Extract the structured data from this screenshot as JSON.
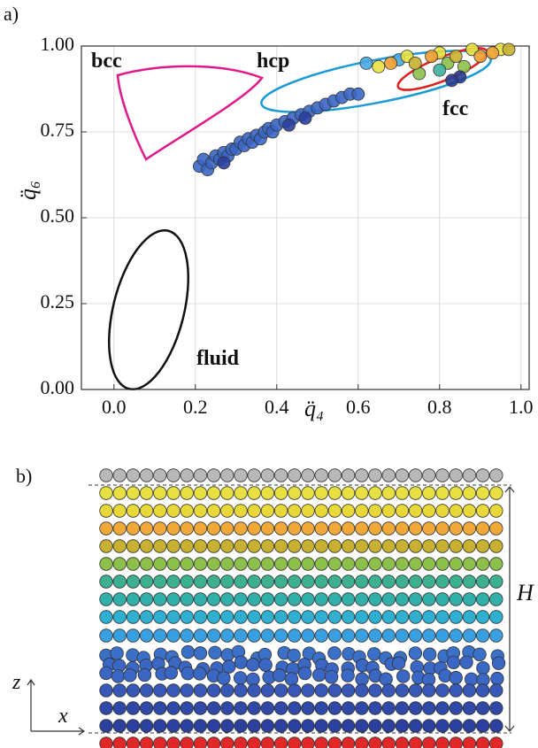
{
  "chart_data": {
    "type": "scatter",
    "panel_label": "a)",
    "x_label": "q̈₄",
    "y_label": "q̈₆",
    "annotations": [
      {
        "text": "bcc",
        "color": "#e0198a"
      },
      {
        "text": "hcp",
        "color": "#1b9ad6"
      },
      {
        "text": "fcc",
        "color": "#e02020"
      },
      {
        "text": "fluid",
        "color": "#111111"
      }
    ],
    "xlim": [
      -0.08,
      1.02
    ],
    "ylim": [
      0,
      1.0
    ],
    "xticks": [
      {
        "value": 0,
        "label": "0.0"
      },
      0.2,
      0.4,
      0.6,
      0.8,
      {
        "value": 1,
        "label": "1.0"
      }
    ],
    "yticks": [
      {
        "value": 0,
        "label": "0.00"
      },
      0.25,
      {
        "value": 0.5,
        "label": "0.50"
      },
      0.75,
      {
        "value": 1,
        "label": "1.00"
      }
    ],
    "grid": true,
    "x": [
      0.21,
      0.22,
      0.23,
      0.24,
      0.25,
      0.26,
      0.27,
      0.28,
      0.29,
      0.3,
      0.31,
      0.32,
      0.33,
      0.34,
      0.35,
      0.36,
      0.37,
      0.38,
      0.39,
      0.4,
      0.42,
      0.44,
      0.46,
      0.48,
      0.5,
      0.52,
      0.54,
      0.56,
      0.58,
      0.6,
      0.43,
      0.47,
      0.27,
      0.62,
      0.7,
      0.65,
      0.72,
      0.8,
      0.88,
      0.95,
      0.75,
      0.82,
      0.86,
      0.78,
      0.9,
      0.93,
      0.68,
      0.74,
      0.84,
      0.97,
      0.8,
      0.85,
      0.83
    ],
    "values": [
      0.65,
      0.67,
      0.64,
      0.66,
      0.68,
      0.67,
      0.69,
      0.68,
      0.7,
      0.7,
      0.72,
      0.71,
      0.73,
      0.72,
      0.74,
      0.73,
      0.75,
      0.76,
      0.75,
      0.77,
      0.78,
      0.79,
      0.8,
      0.81,
      0.82,
      0.83,
      0.84,
      0.85,
      0.86,
      0.86,
      0.77,
      0.79,
      0.66,
      0.95,
      0.96,
      0.94,
      0.97,
      0.98,
      0.99,
      0.99,
      0.92,
      0.95,
      0.94,
      0.97,
      0.97,
      0.98,
      0.95,
      0.95,
      0.97,
      0.99,
      0.93,
      0.91,
      0.9
    ],
    "colors": [
      "#3a66c4",
      "#3a66c4",
      "#3a66c4",
      "#3a66c4",
      "#3a66c4",
      "#3a66c4",
      "#3a66c4",
      "#3a66c4",
      "#3a66c4",
      "#3a66c4",
      "#3a66c4",
      "#3a66c4",
      "#3a66c4",
      "#3a66c4",
      "#3a66c4",
      "#3a66c4",
      "#3a66c4",
      "#3a66c4",
      "#3a66c4",
      "#3a66c4",
      "#3a66c4",
      "#3a66c4",
      "#3a66c4",
      "#3a66c4",
      "#3a66c4",
      "#3a66c4",
      "#3a66c4",
      "#3a66c4",
      "#3a66c4",
      "#3a66c4",
      "#2b3f9e",
      "#2b3f9e",
      "#2b3f9e",
      "#4aa8e0",
      "#4aa8e0",
      "#e8e040",
      "#e8e040",
      "#e8e040",
      "#e8e040",
      "#e8e040",
      "#8cc04a",
      "#8cc04a",
      "#8cc04a",
      "#f0a030",
      "#f0a030",
      "#f0a030",
      "#f0a030",
      "#c8b030",
      "#c8b030",
      "#c8b030",
      "#3cb0a0",
      "#283c90",
      "#283c90"
    ]
  },
  "panel_b": {
    "label": "b)",
    "z_label": "z",
    "x_label": "x",
    "height_label": "H",
    "layer_colors": [
      "#b8b8b8",
      "#e8e040",
      "#e8d838",
      "#f0a838",
      "#c8b030",
      "#8cc04a",
      "#3cb090",
      "#30b0a8",
      "#30b0d0",
      "#38a0e0",
      "#3a70c8",
      "#3a66c4",
      "#3a66c4",
      "#3858b8",
      "#3048a8",
      "#2c40a0",
      "#e02828"
    ],
    "disordered_layers": [
      10,
      11,
      12
    ]
  }
}
